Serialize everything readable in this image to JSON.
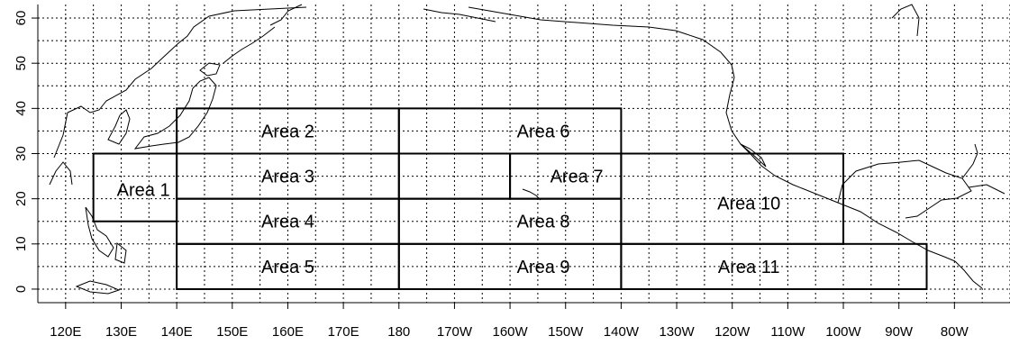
{
  "map": {
    "x_axis": {
      "lon_range": [
        115,
        290
      ],
      "ticks": [
        {
          "lon": 120,
          "label": "120E"
        },
        {
          "lon": 130,
          "label": "130E"
        },
        {
          "lon": 140,
          "label": "140E"
        },
        {
          "lon": 150,
          "label": "150E"
        },
        {
          "lon": 160,
          "label": "160E"
        },
        {
          "lon": 170,
          "label": "170E"
        },
        {
          "lon": 180,
          "label": "180"
        },
        {
          "lon": 190,
          "label": "170W"
        },
        {
          "lon": 200,
          "label": "160W"
        },
        {
          "lon": 210,
          "label": "150W"
        },
        {
          "lon": 220,
          "label": "140W"
        },
        {
          "lon": 230,
          "label": "130W"
        },
        {
          "lon": 240,
          "label": "120W"
        },
        {
          "lon": 250,
          "label": "110W"
        },
        {
          "lon": 260,
          "label": "100W"
        },
        {
          "lon": 270,
          "label": "90W"
        },
        {
          "lon": 280,
          "label": "80W"
        }
      ]
    },
    "y_axis": {
      "lat_range": [
        -3,
        63
      ],
      "ticks": [
        {
          "lat": 0,
          "label": "0"
        },
        {
          "lat": 10,
          "label": "10"
        },
        {
          "lat": 20,
          "label": "20"
        },
        {
          "lat": 30,
          "label": "30"
        },
        {
          "lat": 40,
          "label": "40"
        },
        {
          "lat": 50,
          "label": "50"
        },
        {
          "lat": 60,
          "label": "60"
        }
      ]
    },
    "grid": "dotted every 5 degrees",
    "areas": [
      {
        "label": "Area 1",
        "lon": [
          125,
          140
        ],
        "lat": [
          15,
          30
        ],
        "label_at": [
          134,
          22
        ]
      },
      {
        "label": "Area 2",
        "lon": [
          140,
          180
        ],
        "lat": [
          30,
          40
        ],
        "label_at": [
          160,
          35
        ]
      },
      {
        "label": "Area 3",
        "lon": [
          140,
          180
        ],
        "lat": [
          20,
          30
        ],
        "label_at": [
          160,
          25
        ]
      },
      {
        "label": "Area 4",
        "lon": [
          140,
          180
        ],
        "lat": [
          10,
          20
        ],
        "label_at": [
          160,
          15
        ]
      },
      {
        "label": "Area 5",
        "lon": [
          140,
          180
        ],
        "lat": [
          0,
          10
        ],
        "label_at": [
          160,
          5
        ]
      },
      {
        "label": "Area 6",
        "lon": [
          180,
          220
        ],
        "lat": [
          30,
          40
        ],
        "label_at": [
          206,
          35
        ]
      },
      {
        "label": "Area 7",
        "lon": [
          200,
          220
        ],
        "lat": [
          20,
          30
        ],
        "label_at": [
          212,
          25
        ]
      },
      {
        "label": "Area 8",
        "lon": [
          180,
          220
        ],
        "lat": [
          10,
          20
        ],
        "label_at": [
          206,
          15
        ]
      },
      {
        "label": "Area 9",
        "lon": [
          180,
          220
        ],
        "lat": [
          0,
          10
        ],
        "label_at": [
          206,
          5
        ]
      },
      {
        "label": "Area 10",
        "lon": [
          220,
          260
        ],
        "lat": [
          10,
          30
        ],
        "label_at": [
          243,
          19
        ]
      },
      {
        "label": "Area 11",
        "lon": [
          220,
          275
        ],
        "lat": [
          0,
          10
        ],
        "label_at": [
          243,
          5
        ]
      }
    ],
    "extra_boundaries": [
      {
        "lon": [
          180,
          200
        ],
        "lat": [
          20,
          30
        ]
      },
      {
        "lon": [
          140,
          140
        ],
        "lat": [
          30,
          35
        ]
      },
      {
        "lon": [
          260,
          260
        ],
        "lat": [
          10,
          17
        ]
      }
    ]
  }
}
